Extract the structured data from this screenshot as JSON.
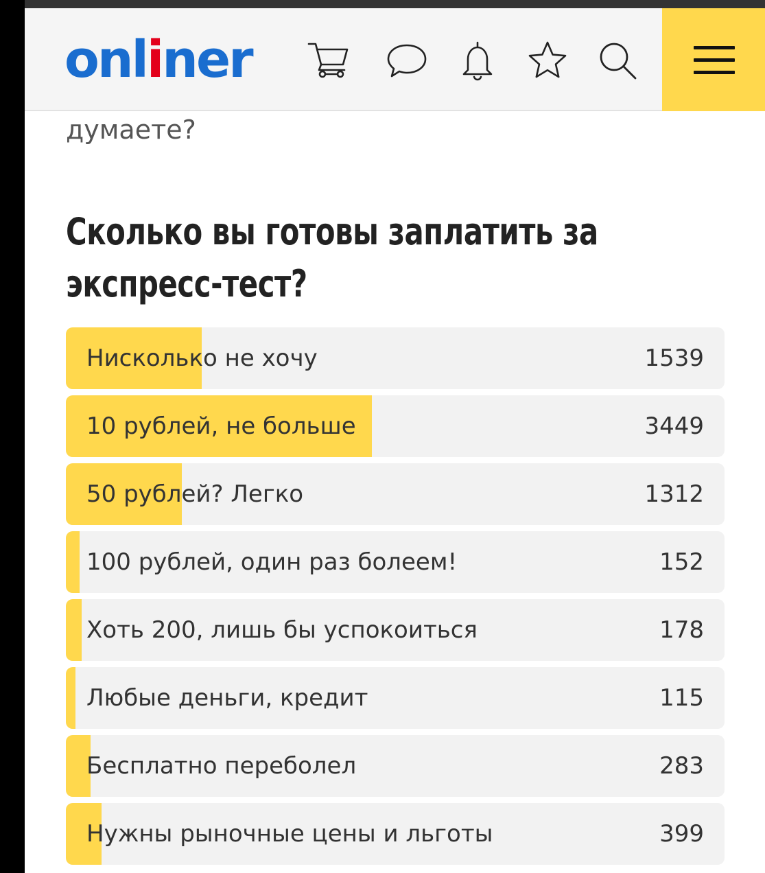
{
  "header": {
    "logo": {
      "before": "onl",
      "accent": "i",
      "after": "ner"
    },
    "icons": [
      "cart-icon",
      "chat-icon",
      "bell-icon",
      "star-icon",
      "search-icon"
    ],
    "menu_icon": "menu-icon",
    "accent_color": "#ffd84d",
    "logo_color": "#1a6dcf"
  },
  "article": {
    "previous_text": "думаете?",
    "poll_question": "Сколько вы готовы заплатить за экспресс-тест?"
  },
  "poll": {
    "options": [
      {
        "label": "Нисколько не хочу",
        "count": "1539",
        "share": 0.206
      },
      {
        "label": "10 рублей, не больше",
        "count": "3449",
        "share": 0.465
      },
      {
        "label": "50 рублей? Легко",
        "count": "1312",
        "share": 0.176
      },
      {
        "label": "100 рублей, один раз болеем!",
        "count": "152",
        "share": 0.021
      },
      {
        "label": "Хоть 200, лишь бы успокоиться",
        "count": "178",
        "share": 0.024
      },
      {
        "label": "Любые деньги, кредит",
        "count": "115",
        "share": 0.015
      },
      {
        "label": "Бесплатно переболел",
        "count": "283",
        "share": 0.038
      },
      {
        "label": "Нужны рыночные цены и льготы",
        "count": "399",
        "share": 0.054
      }
    ]
  }
}
